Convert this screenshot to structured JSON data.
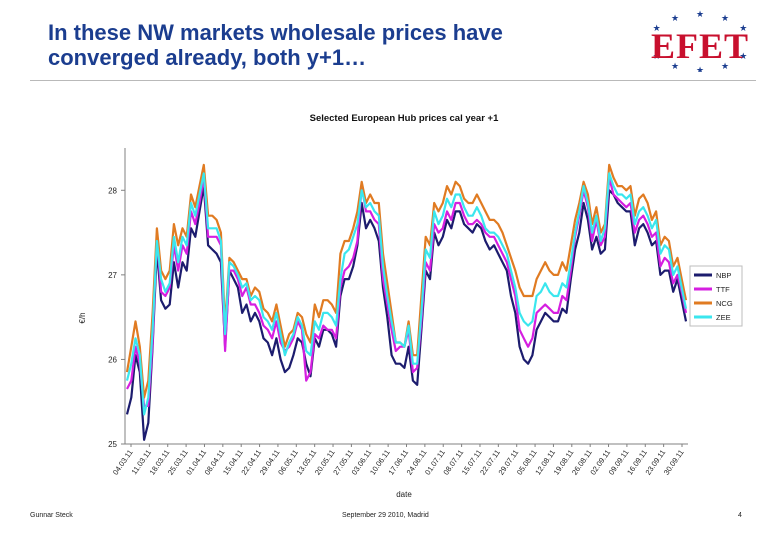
{
  "slide": {
    "title": "In these NW markets wholesale prices have converged already, both y+1…",
    "logo_text": "EFET",
    "footer_left": "Gunnar Steck",
    "footer_center": "September 29 2010, Madrid",
    "footer_right": "4"
  },
  "chart_data": {
    "type": "line",
    "title": "Selected European Hub prices cal year +1",
    "xlabel": "date",
    "ylabel": "€/h",
    "ylim": [
      25,
      28.5
    ],
    "yticks": [
      25,
      26,
      27,
      28
    ],
    "legend_position": "right",
    "x_tick_labels": [
      "04.03.11",
      "11.03.11",
      "18.03.11",
      "25.03.11",
      "01.04.11",
      "08.04.11",
      "15.04.11",
      "22.04.11",
      "29.04.11",
      "06.05.11",
      "13.05.11",
      "20.05.11",
      "27.05.11",
      "03.06.11",
      "10.06.11",
      "17.06.11",
      "24.06.11",
      "01.07.11",
      "08.07.11",
      "15.07.11",
      "22.07.11",
      "29.07.11",
      "05.08.11",
      "12.08.11",
      "19.08.11",
      "26.08.11",
      "02.09.11",
      "09.09.11",
      "16.09.11",
      "23.09.11",
      "30.09.11"
    ],
    "series": [
      {
        "name": "NBP",
        "color": "#1c1c6e",
        "values": [
          25.35,
          25.55,
          26.05,
          25.85,
          25.05,
          25.25,
          26.15,
          27.3,
          26.7,
          26.6,
          26.65,
          27.15,
          26.85,
          27.15,
          27.05,
          27.55,
          27.45,
          27.75,
          28.05,
          27.35,
          27.3,
          27.25,
          27.15,
          26.15,
          27.05,
          26.95,
          26.85,
          26.55,
          26.65,
          26.45,
          26.55,
          26.45,
          26.25,
          26.2,
          26.05,
          26.25,
          26.0,
          25.85,
          25.9,
          26.05,
          26.25,
          26.2,
          25.95,
          25.8,
          26.25,
          26.15,
          26.35,
          26.35,
          26.3,
          26.15,
          26.75,
          26.95,
          26.95,
          27.1,
          27.35,
          27.85,
          27.55,
          27.65,
          27.55,
          27.4,
          26.85,
          26.5,
          26.05,
          25.95,
          25.95,
          25.9,
          26.15,
          25.75,
          25.7,
          26.35,
          27.05,
          26.95,
          27.5,
          27.35,
          27.45,
          27.65,
          27.55,
          27.75,
          27.75,
          27.6,
          27.55,
          27.5,
          27.6,
          27.55,
          27.4,
          27.3,
          27.35,
          27.25,
          27.15,
          27.05,
          26.75,
          26.55,
          26.15,
          26.0,
          25.95,
          26.05,
          26.35,
          26.45,
          26.55,
          26.5,
          26.45,
          26.45,
          26.6,
          26.55,
          26.95,
          27.3,
          27.5,
          27.85,
          27.65,
          27.3,
          27.45,
          27.25,
          27.3,
          28.0,
          27.95,
          27.85,
          27.8,
          27.75,
          27.75,
          27.35,
          27.55,
          27.6,
          27.5,
          27.35,
          27.4,
          27.0,
          27.05,
          27.05,
          26.8,
          26.95,
          26.7,
          26.45
        ]
      },
      {
        "name": "TTF",
        "color": "#d51fe0",
        "values": [
          25.65,
          25.75,
          26.15,
          25.95,
          25.45,
          25.45,
          26.2,
          27.45,
          26.8,
          26.75,
          26.85,
          27.35,
          27.05,
          27.35,
          27.25,
          27.75,
          27.6,
          27.85,
          28.15,
          27.45,
          27.45,
          27.45,
          27.35,
          26.1,
          27.05,
          27.05,
          26.95,
          26.75,
          26.85,
          26.65,
          26.65,
          26.55,
          26.4,
          26.35,
          26.25,
          26.45,
          26.2,
          26.1,
          26.15,
          26.25,
          26.45,
          26.35,
          25.75,
          25.85,
          26.3,
          26.25,
          26.4,
          26.35,
          26.35,
          26.25,
          26.85,
          27.05,
          27.1,
          27.2,
          27.4,
          28.05,
          27.75,
          27.75,
          27.65,
          27.6,
          26.95,
          26.65,
          26.35,
          26.1,
          26.15,
          26.15,
          26.35,
          25.85,
          25.9,
          26.45,
          27.15,
          27.05,
          27.6,
          27.5,
          27.55,
          27.75,
          27.65,
          27.85,
          27.85,
          27.7,
          27.6,
          27.6,
          27.65,
          27.6,
          27.5,
          27.45,
          27.45,
          27.35,
          27.25,
          27.15,
          26.95,
          26.75,
          26.35,
          26.25,
          26.15,
          26.25,
          26.55,
          26.6,
          26.65,
          26.6,
          26.55,
          26.55,
          26.75,
          26.7,
          27.05,
          27.45,
          27.7,
          28.0,
          27.8,
          27.4,
          27.65,
          27.35,
          27.45,
          28.15,
          27.95,
          27.9,
          27.85,
          27.8,
          27.85,
          27.5,
          27.65,
          27.7,
          27.6,
          27.45,
          27.5,
          27.1,
          27.2,
          27.15,
          26.9,
          27.0,
          26.8,
          26.55
        ]
      },
      {
        "name": "NCG",
        "color": "#e07b22",
        "values": [
          25.85,
          26.15,
          26.45,
          26.15,
          25.55,
          25.75,
          26.55,
          27.55,
          27.05,
          26.95,
          27.05,
          27.6,
          27.35,
          27.55,
          27.45,
          27.95,
          27.8,
          28.05,
          28.3,
          27.7,
          27.7,
          27.65,
          27.5,
          26.4,
          27.2,
          27.15,
          27.05,
          26.95,
          26.95,
          26.75,
          26.85,
          26.8,
          26.6,
          26.55,
          26.45,
          26.65,
          26.4,
          26.15,
          26.3,
          26.35,
          26.55,
          26.5,
          26.3,
          26.2,
          26.65,
          26.5,
          26.7,
          26.7,
          26.65,
          26.55,
          27.25,
          27.4,
          27.4,
          27.55,
          27.75,
          28.1,
          27.85,
          27.95,
          27.85,
          27.85,
          27.25,
          26.9,
          26.55,
          26.2,
          26.2,
          26.15,
          26.45,
          26.05,
          26.05,
          26.75,
          27.45,
          27.35,
          27.85,
          27.75,
          27.85,
          28.05,
          27.95,
          28.1,
          28.05,
          27.9,
          27.85,
          27.85,
          27.95,
          27.85,
          27.75,
          27.65,
          27.65,
          27.6,
          27.5,
          27.35,
          27.2,
          27.05,
          26.85,
          26.75,
          26.75,
          26.75,
          26.95,
          27.05,
          27.15,
          27.05,
          27.0,
          27.0,
          27.15,
          27.05,
          27.35,
          27.65,
          27.85,
          28.1,
          27.95,
          27.6,
          27.8,
          27.5,
          27.6,
          28.3,
          28.15,
          28.05,
          28.05,
          28.0,
          28.05,
          27.7,
          27.9,
          27.95,
          27.85,
          27.65,
          27.75,
          27.35,
          27.45,
          27.4,
          27.1,
          27.2,
          26.95,
          26.7
        ]
      },
      {
        "name": "ZEE",
        "color": "#3ae6ee",
        "values": [
          25.75,
          25.95,
          26.25,
          26.05,
          25.35,
          25.55,
          26.35,
          27.4,
          26.95,
          26.8,
          26.9,
          27.45,
          27.15,
          27.45,
          27.35,
          27.85,
          27.7,
          27.95,
          28.2,
          27.55,
          27.55,
          27.55,
          27.4,
          26.3,
          27.15,
          27.1,
          27.0,
          26.85,
          26.9,
          26.7,
          26.75,
          26.7,
          26.5,
          26.45,
          26.35,
          26.55,
          26.3,
          26.05,
          26.2,
          26.3,
          26.5,
          26.4,
          26.1,
          26.05,
          26.45,
          26.35,
          26.55,
          26.55,
          26.5,
          26.4,
          26.95,
          27.25,
          27.3,
          27.45,
          27.6,
          28.0,
          27.8,
          27.85,
          27.75,
          27.7,
          27.1,
          26.75,
          26.45,
          26.2,
          26.2,
          26.15,
          26.4,
          25.95,
          25.95,
          26.55,
          27.3,
          27.2,
          27.75,
          27.6,
          27.7,
          27.9,
          27.8,
          27.95,
          27.95,
          27.8,
          27.7,
          27.7,
          27.8,
          27.7,
          27.55,
          27.5,
          27.5,
          27.45,
          27.35,
          27.25,
          27.05,
          26.85,
          26.55,
          26.45,
          26.4,
          26.45,
          26.75,
          26.8,
          26.9,
          26.8,
          26.75,
          26.75,
          26.9,
          26.85,
          27.15,
          27.5,
          27.75,
          28.05,
          27.85,
          27.5,
          27.7,
          27.4,
          27.55,
          28.2,
          28.05,
          27.95,
          27.95,
          27.9,
          27.95,
          27.6,
          27.75,
          27.8,
          27.7,
          27.55,
          27.65,
          27.25,
          27.35,
          27.3,
          27.0,
          27.1,
          26.85,
          26.6
        ]
      }
    ]
  }
}
